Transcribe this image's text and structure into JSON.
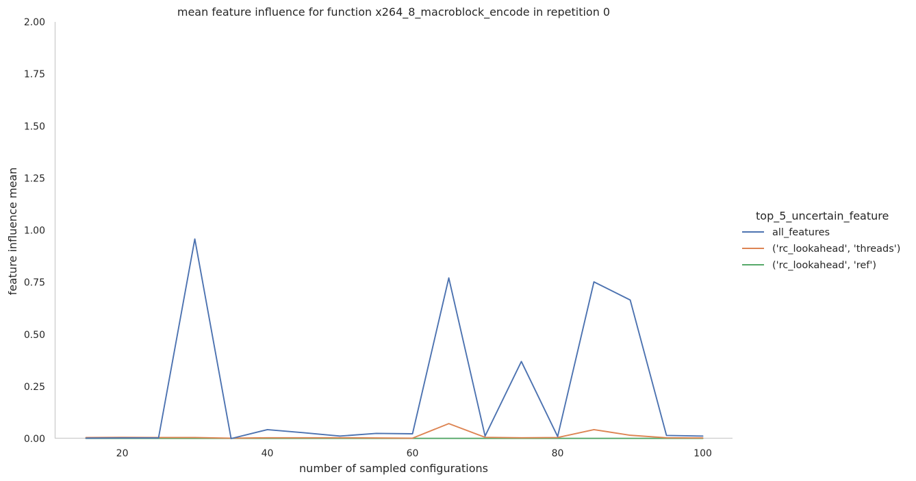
{
  "chart_data": {
    "type": "line",
    "title": "mean feature influence for function x264_8_macroblock_encode in repetition 0",
    "xlabel": "number of sampled configurations",
    "ylabel": "feature influence mean",
    "xlim": [
      10.7,
      104.1
    ],
    "ylim": [
      0,
      2
    ],
    "xticks": [
      20,
      40,
      60,
      80,
      100
    ],
    "xtick_labels": [
      "20",
      "40",
      "60",
      "80",
      "100"
    ],
    "yticks": [
      0,
      0.25,
      0.5,
      0.75,
      1.0,
      1.25,
      1.5,
      1.75,
      2.0
    ],
    "ytick_labels": [
      "0.00",
      "0.25",
      "0.50",
      "0.75",
      "1.00",
      "1.25",
      "1.50",
      "1.75",
      "2.00"
    ],
    "grid": false,
    "legend_title": "top_5_uncertain_feature",
    "legend_position": "right",
    "series": [
      {
        "name": "all_features",
        "color": "#4c72b0",
        "x": [
          15,
          20,
          25,
          30,
          35,
          40,
          45,
          50,
          55,
          60,
          65,
          70,
          75,
          80,
          85,
          90,
          95,
          100
        ],
        "y": [
          0.002,
          0.003,
          0.003,
          0.958,
          0.0,
          0.043,
          0.028,
          0.012,
          0.025,
          0.023,
          0.771,
          0.012,
          0.37,
          0.01,
          0.752,
          0.665,
          0.015,
          0.012
        ]
      },
      {
        "name": "('rc_lookahead', 'threads')",
        "color": "#dd8452",
        "x": [
          15,
          20,
          25,
          30,
          35,
          40,
          45,
          50,
          55,
          60,
          65,
          70,
          75,
          80,
          85,
          90,
          95,
          100
        ],
        "y": [
          0.005,
          0.006,
          0.005,
          0.005,
          0.002,
          0.004,
          0.004,
          0.004,
          0.003,
          0.002,
          0.072,
          0.006,
          0.004,
          0.005,
          0.043,
          0.016,
          0.004,
          0.003
        ]
      },
      {
        "name": "('rc_lookahead', 'ref')",
        "color": "#55a868",
        "x": [
          15,
          20,
          25,
          30,
          35,
          40,
          45,
          50,
          55,
          60,
          65,
          70,
          75,
          80,
          85,
          90,
          95,
          100
        ],
        "y": [
          0.001,
          0.001,
          0.001,
          0.001,
          0.001,
          0.001,
          0.001,
          0.001,
          0.001,
          0.001,
          0.001,
          0.001,
          0.001,
          0.001,
          0.001,
          0.001,
          0.001,
          0.001
        ]
      }
    ]
  }
}
